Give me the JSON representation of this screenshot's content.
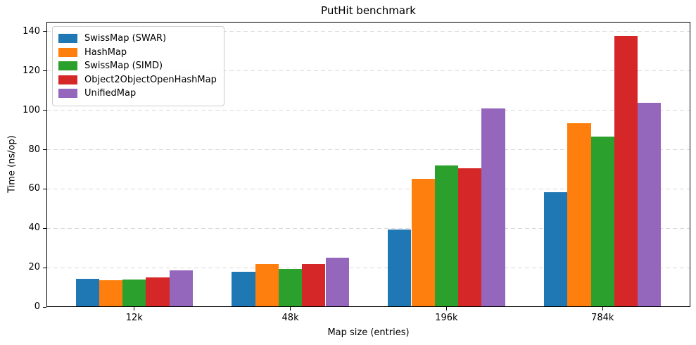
{
  "chart_data": {
    "type": "bar",
    "title": "PutHit benchmark",
    "xlabel": "Map size (entries)",
    "ylabel": "Time (ns/op)",
    "categories": [
      "12k",
      "48k",
      "196k",
      "784k"
    ],
    "series": [
      {
        "name": "SwissMap (SWAR)",
        "color": "#1f77b4",
        "values": [
          14.5,
          18,
          39.5,
          58.5
        ]
      },
      {
        "name": "HashMap",
        "color": "#ff7f0e",
        "values": [
          13.5,
          22,
          65,
          93.5
        ]
      },
      {
        "name": "SwissMap (SIMD)",
        "color": "#2ca02c",
        "values": [
          14,
          19.5,
          72,
          86.5
        ]
      },
      {
        "name": "Object2ObjectOpenHashMap",
        "color": "#d62728",
        "values": [
          15,
          22,
          70.5,
          138
        ]
      },
      {
        "name": "UnifiedMap",
        "color": "#9467bd",
        "values": [
          18.5,
          25,
          101,
          104
        ]
      }
    ],
    "ylim": [
      0,
      145
    ],
    "yticks": [
      0,
      20,
      40,
      60,
      80,
      100,
      120,
      140
    ],
    "grid": "horizontal-dashed",
    "gridline_color": "#d9d9d9",
    "legend_position": "upper-left",
    "background_color": "#ffffff"
  }
}
